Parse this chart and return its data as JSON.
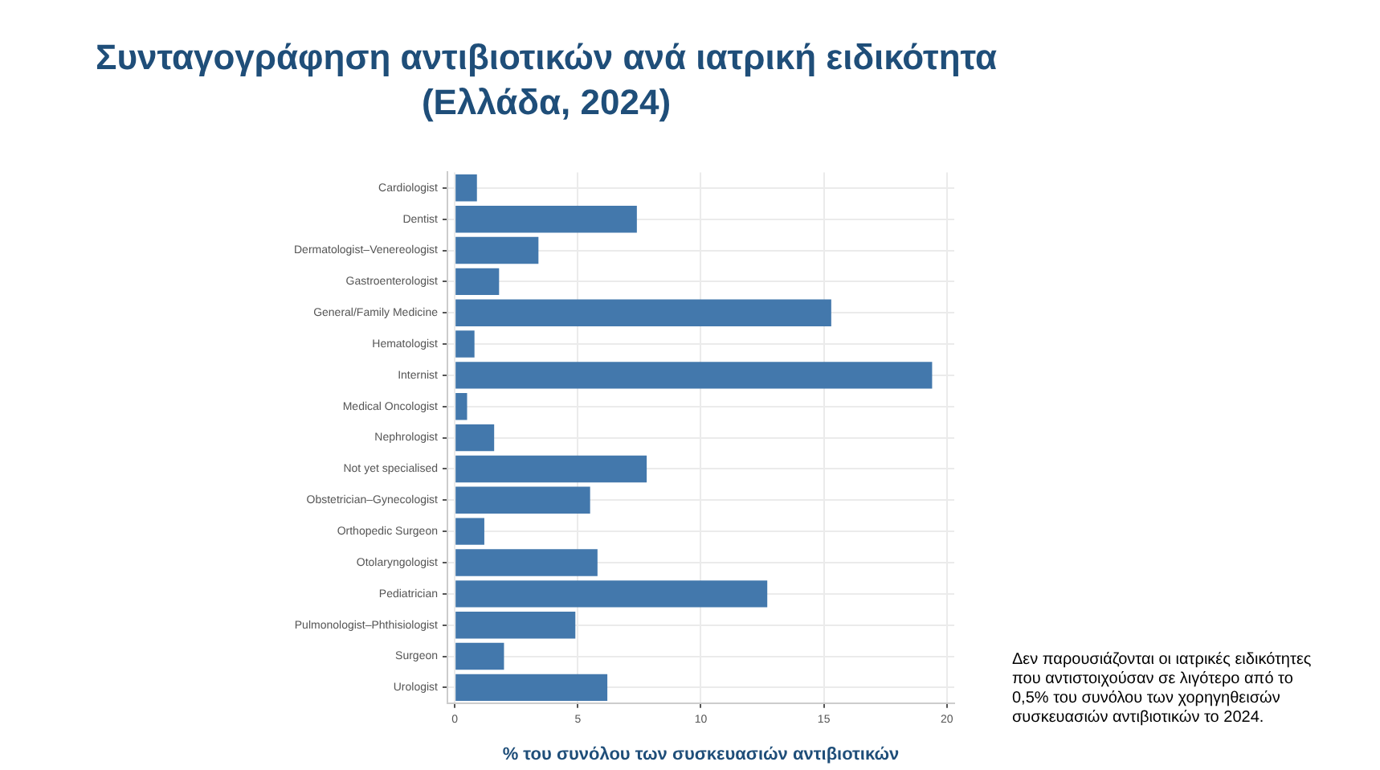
{
  "chart_data": {
    "type": "bar",
    "orientation": "horizontal",
    "title": "Συνταγογράφηση αντιβιοτικών ανά ιατρική ειδικότητα\n(Ελλάδα, 2024)",
    "xlabel": "% του συνόλου των συσκευασιών αντιβιοτικών",
    "categories": [
      "Cardiologist",
      "Dentist",
      "Dermatologist–Venereologist",
      "Gastroenterologist",
      "General/Family Medicine",
      "Hematologist",
      "Internist",
      "Medical Oncologist",
      "Nephrologist",
      "Not yet specialised",
      "Obstetrician–Gynecologist",
      "Orthopedic Surgeon",
      "Otolaryngologist",
      "Pediatrician",
      "Pulmonologist–Phthisiologist",
      "Surgeon",
      "Urologist"
    ],
    "values": [
      0.9,
      7.4,
      3.4,
      1.8,
      15.3,
      0.8,
      19.4,
      0.5,
      1.6,
      7.8,
      5.5,
      1.2,
      5.8,
      12.7,
      4.9,
      2.0,
      6.2
    ],
    "color": "#4378ac",
    "xlim": [
      -0.3,
      20.3
    ],
    "xticks": [
      0,
      5,
      10,
      15,
      20
    ],
    "grid": true,
    "annotations": [
      "Δεν παρουσιάζονται οι ιατρικές ειδικότητες που αντιστοιχούσαν σε λιγότερο από το 0,5% του συνόλου των χορηγηθεισών συσκευασιών αντιβιοτικών το 2024."
    ]
  }
}
